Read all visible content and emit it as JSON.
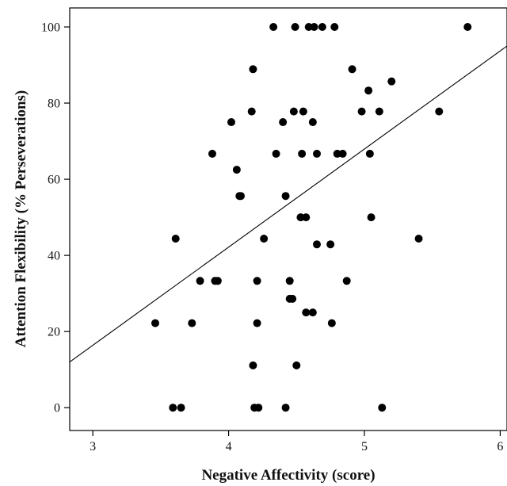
{
  "chart_data": {
    "type": "scatter",
    "title": "",
    "xlabel": "Negative Affectivity (score)",
    "ylabel": "Attention Flexibility (% Perseverations)",
    "xlim": [
      2.83,
      6.05
    ],
    "ylim": [
      -6,
      105
    ],
    "xticks": [
      3,
      4,
      5,
      6
    ],
    "yticks": [
      0,
      20,
      40,
      60,
      80,
      100
    ],
    "grid": false,
    "legend": "none",
    "colors": {
      "points": "#000000",
      "line": "#000000",
      "axes": "#000000"
    },
    "points": [
      {
        "x": 3.46,
        "y": 22.2
      },
      {
        "x": 3.59,
        "y": 0
      },
      {
        "x": 3.61,
        "y": 44.4
      },
      {
        "x": 3.65,
        "y": 0
      },
      {
        "x": 3.73,
        "y": 22.2
      },
      {
        "x": 3.79,
        "y": 33.3
      },
      {
        "x": 3.88,
        "y": 66.7
      },
      {
        "x": 3.9,
        "y": 33.3
      },
      {
        "x": 3.92,
        "y": 33.3
      },
      {
        "x": 4.02,
        "y": 75.0
      },
      {
        "x": 4.06,
        "y": 62.5
      },
      {
        "x": 4.08,
        "y": 55.6
      },
      {
        "x": 4.09,
        "y": 55.6
      },
      {
        "x": 4.17,
        "y": 77.8
      },
      {
        "x": 4.18,
        "y": 88.9
      },
      {
        "x": 4.18,
        "y": 11.1
      },
      {
        "x": 4.19,
        "y": 0
      },
      {
        "x": 4.21,
        "y": 22.2
      },
      {
        "x": 4.21,
        "y": 33.3
      },
      {
        "x": 4.22,
        "y": 0
      },
      {
        "x": 4.26,
        "y": 44.4
      },
      {
        "x": 4.33,
        "y": 100
      },
      {
        "x": 4.35,
        "y": 66.7
      },
      {
        "x": 4.4,
        "y": 75.0
      },
      {
        "x": 4.42,
        "y": 55.6
      },
      {
        "x": 4.42,
        "y": 0
      },
      {
        "x": 4.45,
        "y": 33.3
      },
      {
        "x": 4.45,
        "y": 28.6
      },
      {
        "x": 4.47,
        "y": 28.6
      },
      {
        "x": 4.48,
        "y": 77.8
      },
      {
        "x": 4.49,
        "y": 100
      },
      {
        "x": 4.5,
        "y": 11.1
      },
      {
        "x": 4.53,
        "y": 50.0
      },
      {
        "x": 4.54,
        "y": 66.7
      },
      {
        "x": 4.55,
        "y": 77.8
      },
      {
        "x": 4.57,
        "y": 50.0
      },
      {
        "x": 4.57,
        "y": 25.0
      },
      {
        "x": 4.59,
        "y": 100
      },
      {
        "x": 4.62,
        "y": 75.0
      },
      {
        "x": 4.62,
        "y": 25.0
      },
      {
        "x": 4.63,
        "y": 100
      },
      {
        "x": 4.65,
        "y": 66.7
      },
      {
        "x": 4.65,
        "y": 42.9
      },
      {
        "x": 4.69,
        "y": 100
      },
      {
        "x": 4.75,
        "y": 42.9
      },
      {
        "x": 4.76,
        "y": 22.2
      },
      {
        "x": 4.78,
        "y": 100
      },
      {
        "x": 4.8,
        "y": 66.7
      },
      {
        "x": 4.84,
        "y": 66.7
      },
      {
        "x": 4.87,
        "y": 33.3
      },
      {
        "x": 4.91,
        "y": 88.9
      },
      {
        "x": 4.98,
        "y": 77.8
      },
      {
        "x": 5.03,
        "y": 83.3
      },
      {
        "x": 5.04,
        "y": 66.7
      },
      {
        "x": 5.05,
        "y": 50.0
      },
      {
        "x": 5.11,
        "y": 77.8
      },
      {
        "x": 5.13,
        "y": 0
      },
      {
        "x": 5.2,
        "y": 85.7
      },
      {
        "x": 5.4,
        "y": 44.4
      },
      {
        "x": 5.55,
        "y": 77.8
      },
      {
        "x": 5.76,
        "y": 100
      }
    ],
    "fit_line": {
      "x": [
        2.83,
        6.05
      ],
      "y": [
        12.0,
        95.0
      ]
    }
  }
}
